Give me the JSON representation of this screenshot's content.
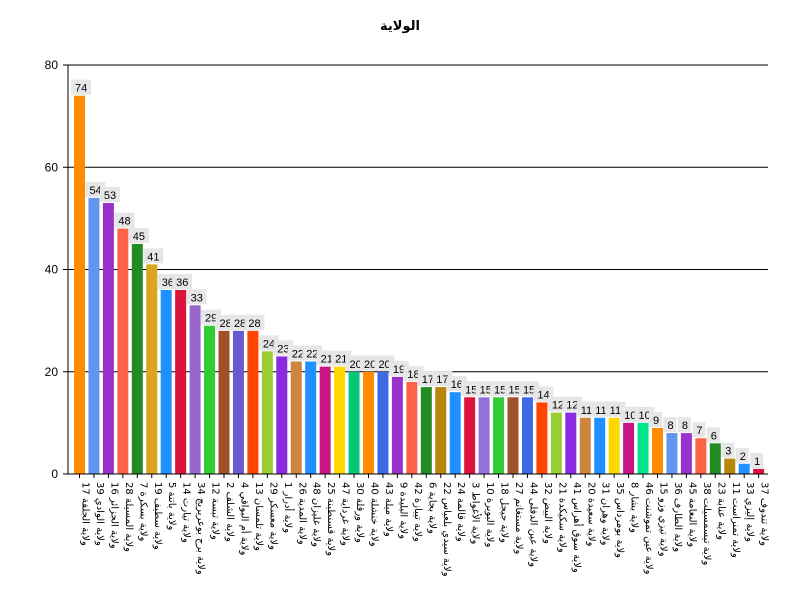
{
  "chart_data": {
    "type": "bar",
    "title": "الولاية",
    "xlabel": "",
    "ylabel": "",
    "ylim": [
      0,
      80
    ],
    "yticks": [
      0,
      20,
      40,
      60,
      80
    ],
    "grid": true,
    "categories": [
      "17 ولاية الجلفة",
      "39 ولاية الوادي",
      "16 ولاية الجزائر",
      "28 ولاية المسيلة",
      "7 ولاية بسكرة",
      "19 ولاية سطيف",
      "5 ولاية باتنة",
      "14 ولاية تيارت",
      "34 ولاية برج بوعريريج",
      "12 ولاية تبسة",
      "2 ولاية الشلف",
      "4 ولاية أم البواقي",
      "13 ولاية تلمسان",
      "29 ولاية معسكر",
      "1 ولاية أدرار",
      "26 ولاية المدية",
      "48 ولاية غليزان",
      "25 ولاية قسنطينة",
      "47 ولاية غرداية",
      "30 ولاية ورقلة",
      "40 ولاية خنشلة",
      "43 ولاية ميلة",
      "9 ولاية البليدة",
      "42 ولاية تيبازة",
      "6 ولاية بجاية",
      "22 ولاية سيدي بلعباس",
      "24 ولاية قالمة",
      "3 ولاية الأغواط",
      "10 ولاية البويرة",
      "18 ولاية جيجل",
      "27 ولاية مستغانم",
      "44 ولاية عين الدفلى",
      "32 ولاية البيض",
      "21 ولاية سكيكدة",
      "41 ولاية سوق أهراس",
      "20 ولاية سعيدة",
      "31 ولاية وهران",
      "35 ولاية بومرداس",
      "8 ولاية بشار",
      "46 ولاية عين تموشنت",
      "15 ولاية تيزي وزو",
      "36 ولاية الطارف",
      "45 ولاية النعامة",
      "38 ولاية تيسمسيلت",
      "23 ولاية عنابة",
      "11 ولاية تمنراست",
      "33 ولاية إليزي",
      "37 ولاية تندوف"
    ],
    "values": [
      74,
      54,
      53,
      48,
      45,
      41,
      36,
      36,
      33,
      29,
      28,
      28,
      28,
      24,
      23,
      22,
      22,
      21,
      21,
      20,
      20,
      20,
      19,
      18,
      17,
      17,
      16,
      15,
      15,
      15,
      15,
      15,
      14,
      12,
      12,
      11,
      11,
      11,
      10,
      10,
      9,
      8,
      8,
      7,
      6,
      3,
      2,
      1
    ],
    "data_labels": [
      "74",
      "54",
      "53",
      "48",
      "45",
      "41",
      "36",
      "36",
      "33",
      "29",
      "28",
      "28",
      "28",
      "24",
      "23",
      "22",
      "22",
      "21",
      "21",
      "20",
      "20",
      "20",
      "19",
      "18",
      "17",
      "17",
      "16",
      "15",
      "15",
      "15",
      "15",
      "15",
      "14",
      "12",
      "12",
      "11",
      "11",
      "11",
      "10",
      "10",
      "9",
      "8",
      "8",
      "7",
      "6",
      "3",
      "2",
      "1"
    ],
    "colors": [
      "#ff8c00",
      "#6495ed",
      "#9932cc",
      "#ff6347",
      "#228b22",
      "#daa520",
      "#1e90ff",
      "#dc143c",
      "#9966cc",
      "#32cd32",
      "#a0522d",
      "#6a5acd",
      "#ff4500",
      "#9acd32",
      "#8a2be2",
      "#cd853f",
      "#1e90ff",
      "#c71585",
      "#ffd700",
      "#00c878",
      "#ff8c00",
      "#4169e1",
      "#9932cc",
      "#ff6347",
      "#228b22",
      "#b8860b",
      "#1e90ff",
      "#dc143c",
      "#9370db",
      "#32cd32",
      "#a0522d",
      "#4169e1",
      "#ff4500",
      "#9acd32",
      "#8a2be2",
      "#cd853f",
      "#1e90ff",
      "#ffd700",
      "#c71585",
      "#00e68a",
      "#ff8c00",
      "#6495ed",
      "#9932cc",
      "#ff6347",
      "#228b22",
      "#b8860b",
      "#1e90ff",
      "#dc143c"
    ]
  }
}
